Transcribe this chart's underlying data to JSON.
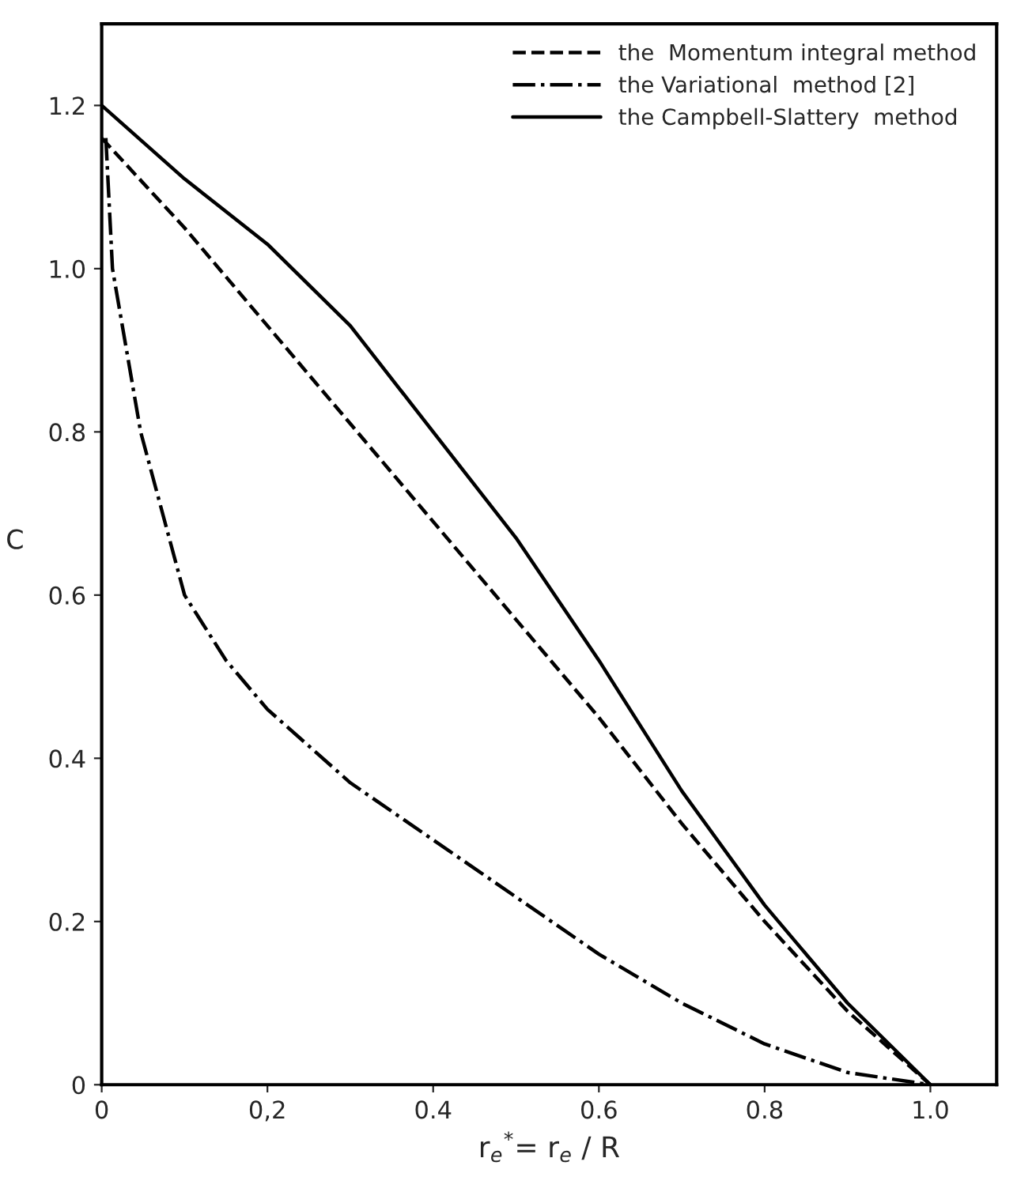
{
  "chart_data": {
    "type": "line",
    "xlabel": "r$_{e}$$^{*}$= r$_{e}$ / R",
    "ylabel": "C",
    "xlim": [
      0,
      1.08
    ],
    "ylim": [
      0,
      1.3
    ],
    "xticks": [
      0,
      {
        "value": 0.2,
        "label": "0,2"
      },
      0.4,
      0.6,
      0.8,
      {
        "value": 1.0,
        "label": "1.0"
      }
    ],
    "yticks": [
      0,
      0.2,
      0.4,
      0.6,
      0.8,
      {
        "value": 1.0,
        "label": "1.0"
      },
      1.2
    ],
    "grid": false,
    "legend": "top right",
    "marker": "none",
    "series": [
      {
        "name": "the  Momentum integral method",
        "color": "#000000",
        "line_style": "dashed",
        "x": [
          0,
          0.1,
          0.2,
          0.3,
          0.4,
          0.5,
          0.6,
          0.7,
          0.8,
          0.9,
          1.0
        ],
        "values": [
          1.16,
          1.05,
          0.93,
          0.81,
          0.69,
          0.57,
          0.45,
          0.32,
          0.2,
          0.09,
          0
        ]
      },
      {
        "name": "the Variational  method [2]",
        "color": "#000000",
        "line_style": "dashdot",
        "x": [
          0.005,
          0.013,
          0.047,
          0.1,
          0.15,
          0.2,
          0.3,
          0.4,
          0.5,
          0.6,
          0.7,
          0.8,
          0.9,
          1.0
        ],
        "values": [
          1.16,
          1.0,
          0.8,
          0.6,
          0.52,
          0.46,
          0.37,
          0.3,
          0.23,
          0.16,
          0.1,
          0.05,
          0.015,
          0
        ]
      },
      {
        "name": "the Campbell-Slattery  method",
        "color": "#000000",
        "line_style": "solid",
        "x": [
          0,
          0.1,
          0.2,
          0.3,
          0.4,
          0.5,
          0.6,
          0.7,
          0.8,
          0.9,
          1.0
        ],
        "values": [
          1.2,
          1.11,
          1.03,
          0.93,
          0.8,
          0.67,
          0.52,
          0.36,
          0.22,
          0.1,
          0
        ]
      }
    ]
  }
}
